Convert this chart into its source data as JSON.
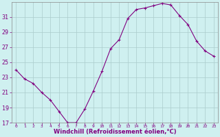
{
  "x": [
    0,
    1,
    2,
    3,
    4,
    5,
    6,
    7,
    8,
    9,
    10,
    11,
    12,
    13,
    14,
    15,
    16,
    17,
    18,
    19,
    20,
    21,
    22,
    23
  ],
  "y": [
    24.0,
    22.8,
    22.2,
    21.0,
    20.0,
    18.5,
    17.0,
    17.0,
    18.8,
    21.2,
    23.8,
    26.8,
    28.0,
    30.8,
    32.0,
    32.2,
    32.5,
    32.8,
    32.6,
    31.2,
    30.0,
    27.8,
    26.5,
    25.8
  ],
  "line_color": "#800080",
  "marker": "+",
  "marker_color": "#800080",
  "bg_color": "#cff0f0",
  "grid_color": "#aacccc",
  "xlabel": "Windchill (Refroidissement éolien,°C)",
  "xlabel_color": "#800080",
  "tick_color": "#800080",
  "axis_color": "#888888",
  "ylim": [
    17,
    33
  ],
  "xlim": [
    -0.5,
    23.5
  ],
  "yticks": [
    17,
    19,
    21,
    23,
    25,
    27,
    29,
    31
  ],
  "xticks": [
    0,
    1,
    2,
    3,
    4,
    5,
    6,
    7,
    8,
    9,
    10,
    11,
    12,
    13,
    14,
    15,
    16,
    17,
    18,
    19,
    20,
    21,
    22,
    23
  ],
  "ylabel_fontsize": 6,
  "xlabel_fontsize": 6,
  "xtick_fontsize": 4.5,
  "ytick_fontsize": 6
}
